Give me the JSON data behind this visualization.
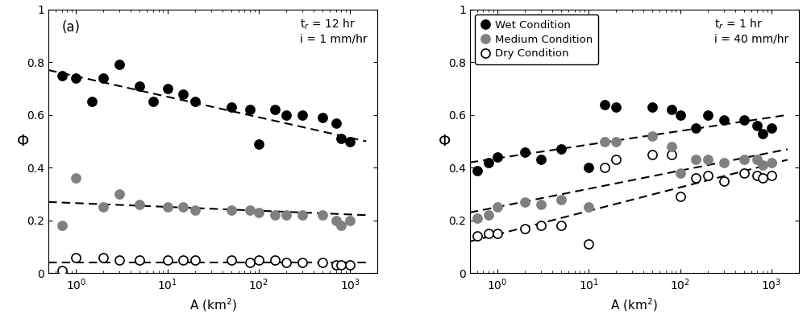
{
  "panel_a": {
    "label": "(a)",
    "annotation_line1": "t$_r$ = 12 hr",
    "annotation_line2": "i = 1 mm/hr",
    "xlabel": "A (km$^2$)",
    "ylabel": "Φ",
    "xlim": [
      0.5,
      2000
    ],
    "ylim": [
      0,
      1
    ],
    "yticks": [
      0,
      0.2,
      0.4,
      0.6,
      0.8,
      1.0
    ],
    "wet": {
      "x": [
        0.7,
        1.0,
        1.5,
        2.0,
        3.0,
        5.0,
        7.0,
        10.0,
        15.0,
        20.0,
        50.0,
        80.0,
        100.0,
        150.0,
        200.0,
        300.0,
        500.0,
        700.0,
        800.0,
        1000.0
      ],
      "y": [
        0.75,
        0.74,
        0.65,
        0.74,
        0.79,
        0.71,
        0.65,
        0.7,
        0.68,
        0.65,
        0.63,
        0.62,
        0.49,
        0.62,
        0.6,
        0.6,
        0.59,
        0.57,
        0.51,
        0.5
      ],
      "trend_x": [
        0.5,
        1500
      ],
      "trend_y": [
        0.77,
        0.5
      ],
      "facecolor": "black",
      "edgecolor": "black"
    },
    "medium": {
      "x": [
        0.7,
        1.0,
        2.0,
        3.0,
        5.0,
        10.0,
        15.0,
        20.0,
        50.0,
        80.0,
        100.0,
        150.0,
        200.0,
        300.0,
        500.0,
        700.0,
        800.0,
        1000.0
      ],
      "y": [
        0.18,
        0.36,
        0.25,
        0.3,
        0.26,
        0.25,
        0.25,
        0.24,
        0.24,
        0.24,
        0.23,
        0.22,
        0.22,
        0.22,
        0.22,
        0.2,
        0.18,
        0.2
      ],
      "trend_x": [
        0.5,
        1500
      ],
      "trend_y": [
        0.27,
        0.22
      ],
      "facecolor": "#808080",
      "edgecolor": "#808080"
    },
    "dry": {
      "x": [
        0.7,
        1.0,
        2.0,
        3.0,
        5.0,
        10.0,
        15.0,
        20.0,
        50.0,
        80.0,
        100.0,
        150.0,
        200.0,
        300.0,
        500.0,
        700.0,
        800.0,
        1000.0
      ],
      "y": [
        0.01,
        0.06,
        0.06,
        0.05,
        0.05,
        0.05,
        0.05,
        0.05,
        0.05,
        0.04,
        0.05,
        0.05,
        0.04,
        0.04,
        0.04,
        0.03,
        0.03,
        0.03
      ],
      "trend_x": [
        0.5,
        1500
      ],
      "trend_y": [
        0.04,
        0.04
      ],
      "facecolor": "white",
      "edgecolor": "black"
    }
  },
  "panel_b": {
    "label": "(b)",
    "annotation_line1": "t$_r$ = 1 hr",
    "annotation_line2": "i = 40 mm/hr",
    "xlabel": "A (km$^2$)",
    "ylabel": "Φ",
    "xlim": [
      0.5,
      2000
    ],
    "ylim": [
      0,
      1
    ],
    "yticks": [
      0,
      0.2,
      0.4,
      0.6,
      0.8,
      1.0
    ],
    "legend_wet": "Wet Condition",
    "legend_medium": "Medium Condition",
    "legend_dry": "Dry Condition",
    "wet": {
      "x": [
        0.6,
        0.8,
        1.0,
        2.0,
        3.0,
        5.0,
        10.0,
        15.0,
        20.0,
        50.0,
        80.0,
        100.0,
        150.0,
        200.0,
        300.0,
        500.0,
        700.0,
        800.0,
        1000.0
      ],
      "y": [
        0.39,
        0.42,
        0.44,
        0.46,
        0.43,
        0.47,
        0.4,
        0.64,
        0.63,
        0.63,
        0.62,
        0.6,
        0.55,
        0.6,
        0.58,
        0.58,
        0.56,
        0.53,
        0.55
      ],
      "trend_x": [
        0.5,
        1500
      ],
      "trend_y": [
        0.42,
        0.6
      ],
      "facecolor": "black",
      "edgecolor": "black"
    },
    "medium": {
      "x": [
        0.6,
        0.8,
        1.0,
        2.0,
        3.0,
        5.0,
        10.0,
        15.0,
        20.0,
        50.0,
        80.0,
        100.0,
        150.0,
        200.0,
        300.0,
        500.0,
        700.0,
        800.0,
        1000.0
      ],
      "y": [
        0.21,
        0.22,
        0.25,
        0.27,
        0.26,
        0.28,
        0.25,
        0.5,
        0.5,
        0.52,
        0.48,
        0.38,
        0.43,
        0.43,
        0.42,
        0.43,
        0.43,
        0.41,
        0.42
      ],
      "trend_x": [
        0.5,
        1500
      ],
      "trend_y": [
        0.23,
        0.47
      ],
      "facecolor": "#808080",
      "edgecolor": "#808080"
    },
    "dry": {
      "x": [
        0.6,
        0.8,
        1.0,
        2.0,
        3.0,
        5.0,
        10.0,
        15.0,
        20.0,
        50.0,
        80.0,
        100.0,
        150.0,
        200.0,
        300.0,
        500.0,
        700.0,
        800.0,
        1000.0
      ],
      "y": [
        0.14,
        0.15,
        0.15,
        0.17,
        0.18,
        0.18,
        0.11,
        0.4,
        0.43,
        0.45,
        0.45,
        0.29,
        0.36,
        0.37,
        0.35,
        0.38,
        0.37,
        0.36,
        0.37
      ],
      "trend_x": [
        0.5,
        1500
      ],
      "trend_y": [
        0.12,
        0.43
      ],
      "facecolor": "white",
      "edgecolor": "black"
    }
  },
  "figure_bg": "white",
  "markersize": 8,
  "markeredgewidth": 1.2,
  "linewidth": 1.5,
  "dash_pattern": [
    5,
    3
  ]
}
